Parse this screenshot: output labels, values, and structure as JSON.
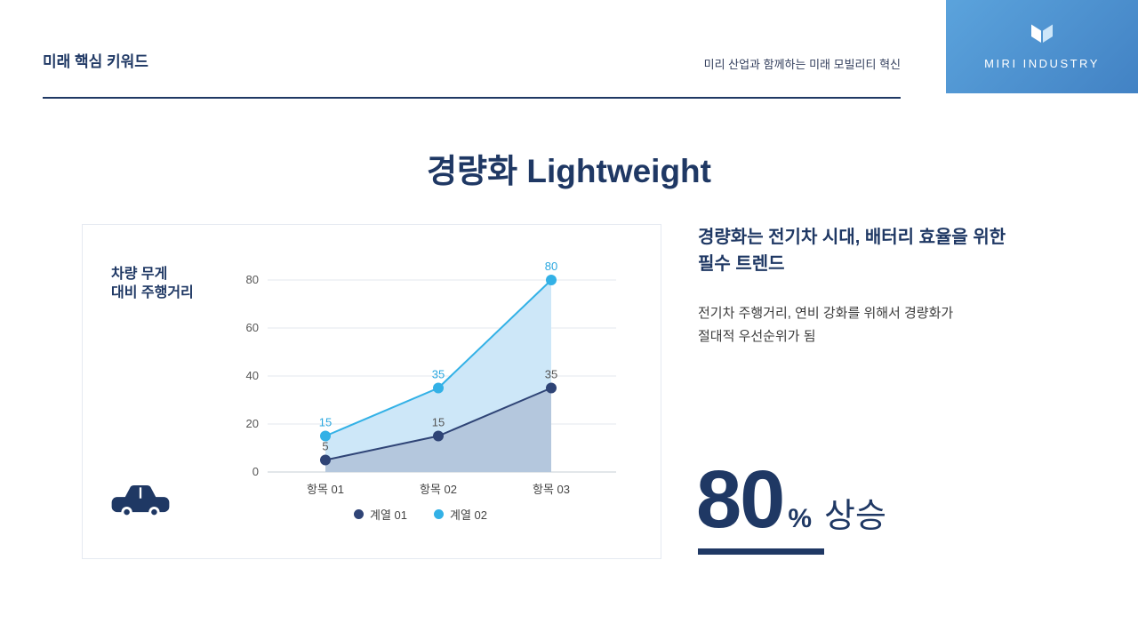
{
  "colors": {
    "navy": "#1F3864",
    "cyan": "#33B1E6",
    "gradient_top": "#5BA3DC",
    "gradient_bottom": "#4282C4"
  },
  "header": {
    "kicker": "미래 핵심 키워드",
    "tagline": "미리 산업과 함께하는 미래 모빌리티 혁신",
    "brand": "MIRI INDUSTRY"
  },
  "title": "경량화 Lightweight",
  "chart_card": {
    "axis_label_lines": [
      "차량 무게",
      "대비 주행거리"
    ]
  },
  "chart_data": {
    "type": "line",
    "title": "차량 무게 대비 주행거리",
    "categories": [
      "항목 01",
      "항목 02",
      "항목 03"
    ],
    "series": [
      {
        "name": "계열 01",
        "values": [
          5,
          15,
          35
        ],
        "color": "#2F4476",
        "fill": "#B4C7DD",
        "label_color": "#555555"
      },
      {
        "name": "계열 02",
        "values": [
          15,
          35,
          80
        ],
        "color": "#33B1E6",
        "fill": "#CDE7F8",
        "label_color": "#2AA7DF"
      }
    ],
    "xlabel": "",
    "ylabel": "",
    "ylim": [
      0,
      80
    ],
    "yticks": [
      0,
      20,
      40,
      60,
      80
    ],
    "area": true,
    "grid": true,
    "legend_position": "bottom"
  },
  "right": {
    "heading_lines": [
      "경량화는 전기차 시대, 배터리 효율을 위한",
      "필수 트렌드"
    ],
    "body_lines": [
      "전기차 주행거리, 연비 강화를 위해서 경량화가",
      "절대적 우선순위가 됨"
    ],
    "stat": {
      "value": "80",
      "unit": "%",
      "suffix": "상승"
    }
  }
}
